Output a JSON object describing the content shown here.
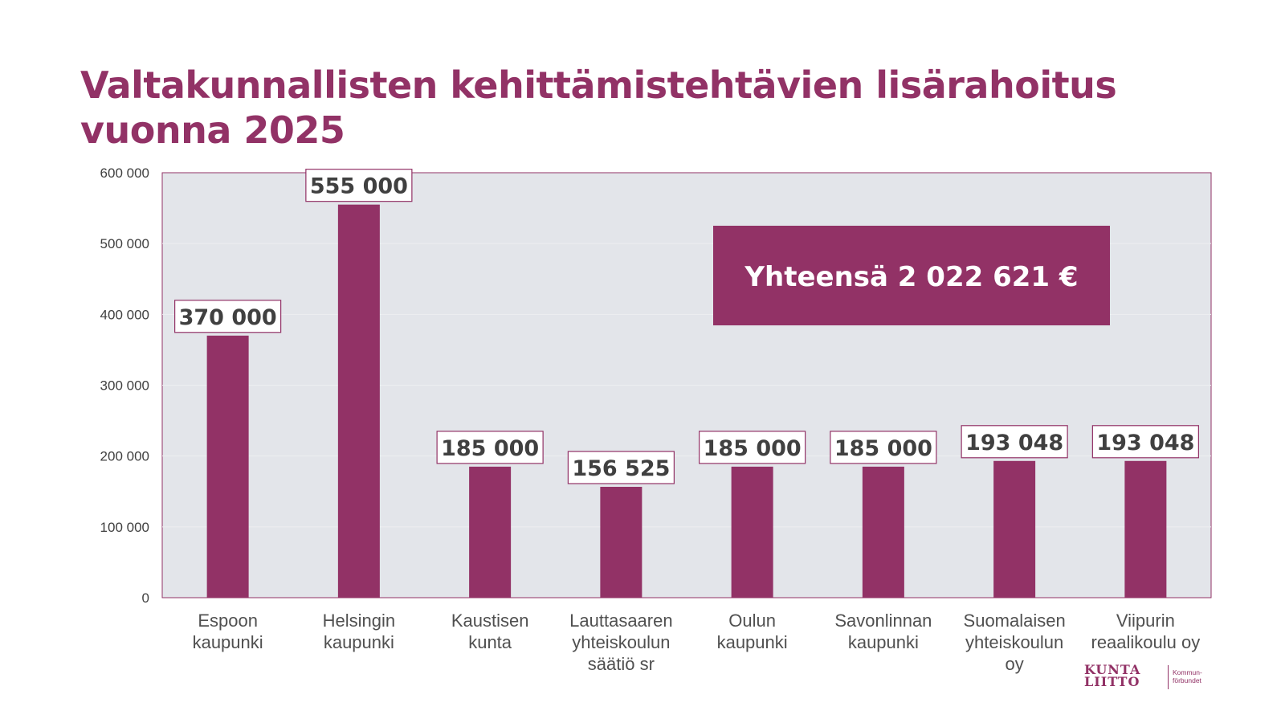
{
  "title": "Valtakunnallisten kehittämistehtävien lisärahoitus vuonna 2025",
  "total_box": {
    "text": "Yhteensä 2 022 621 €"
  },
  "logo": {
    "line1": "KUNTA",
    "line2": "LIITTO",
    "sub1": "Kommun-",
    "sub2": "förbundet"
  },
  "colors": {
    "accent": "#923266",
    "plot_bg": "#E3E5EA",
    "label_text": "#404040"
  },
  "chart_data": {
    "type": "bar",
    "title": "Valtakunnallisten kehittämistehtävien lisärahoitus vuonna 2025",
    "categories": [
      [
        "Espoon",
        "kaupunki"
      ],
      [
        "Helsingin",
        "kaupunki"
      ],
      [
        "Kaustisen",
        "kunta"
      ],
      [
        "Lauttasaaren",
        "yhteiskoulun",
        "säätiö sr"
      ],
      [
        "Oulun",
        "kaupunki"
      ],
      [
        "Savonlinnan",
        "kaupunki"
      ],
      [
        "Suomalaisen",
        "yhteiskoulun",
        "oy"
      ],
      [
        "Viipurin",
        "reaalikoulu oy"
      ]
    ],
    "values": [
      370000,
      555000,
      185000,
      156525,
      185000,
      185000,
      193048,
      193048
    ],
    "data_labels": [
      "370 000",
      "555 000",
      "185 000",
      "156 525",
      "185 000",
      "185 000",
      "193 048",
      "193 048"
    ],
    "yticks": [
      0,
      100000,
      200000,
      300000,
      400000,
      500000,
      600000
    ],
    "ytick_labels": [
      "0",
      "100 000",
      "200 000",
      "300 000",
      "400 000",
      "500 000",
      "600 000"
    ],
    "ylim": [
      0,
      600000
    ],
    "grid": true,
    "legend": "none"
  }
}
